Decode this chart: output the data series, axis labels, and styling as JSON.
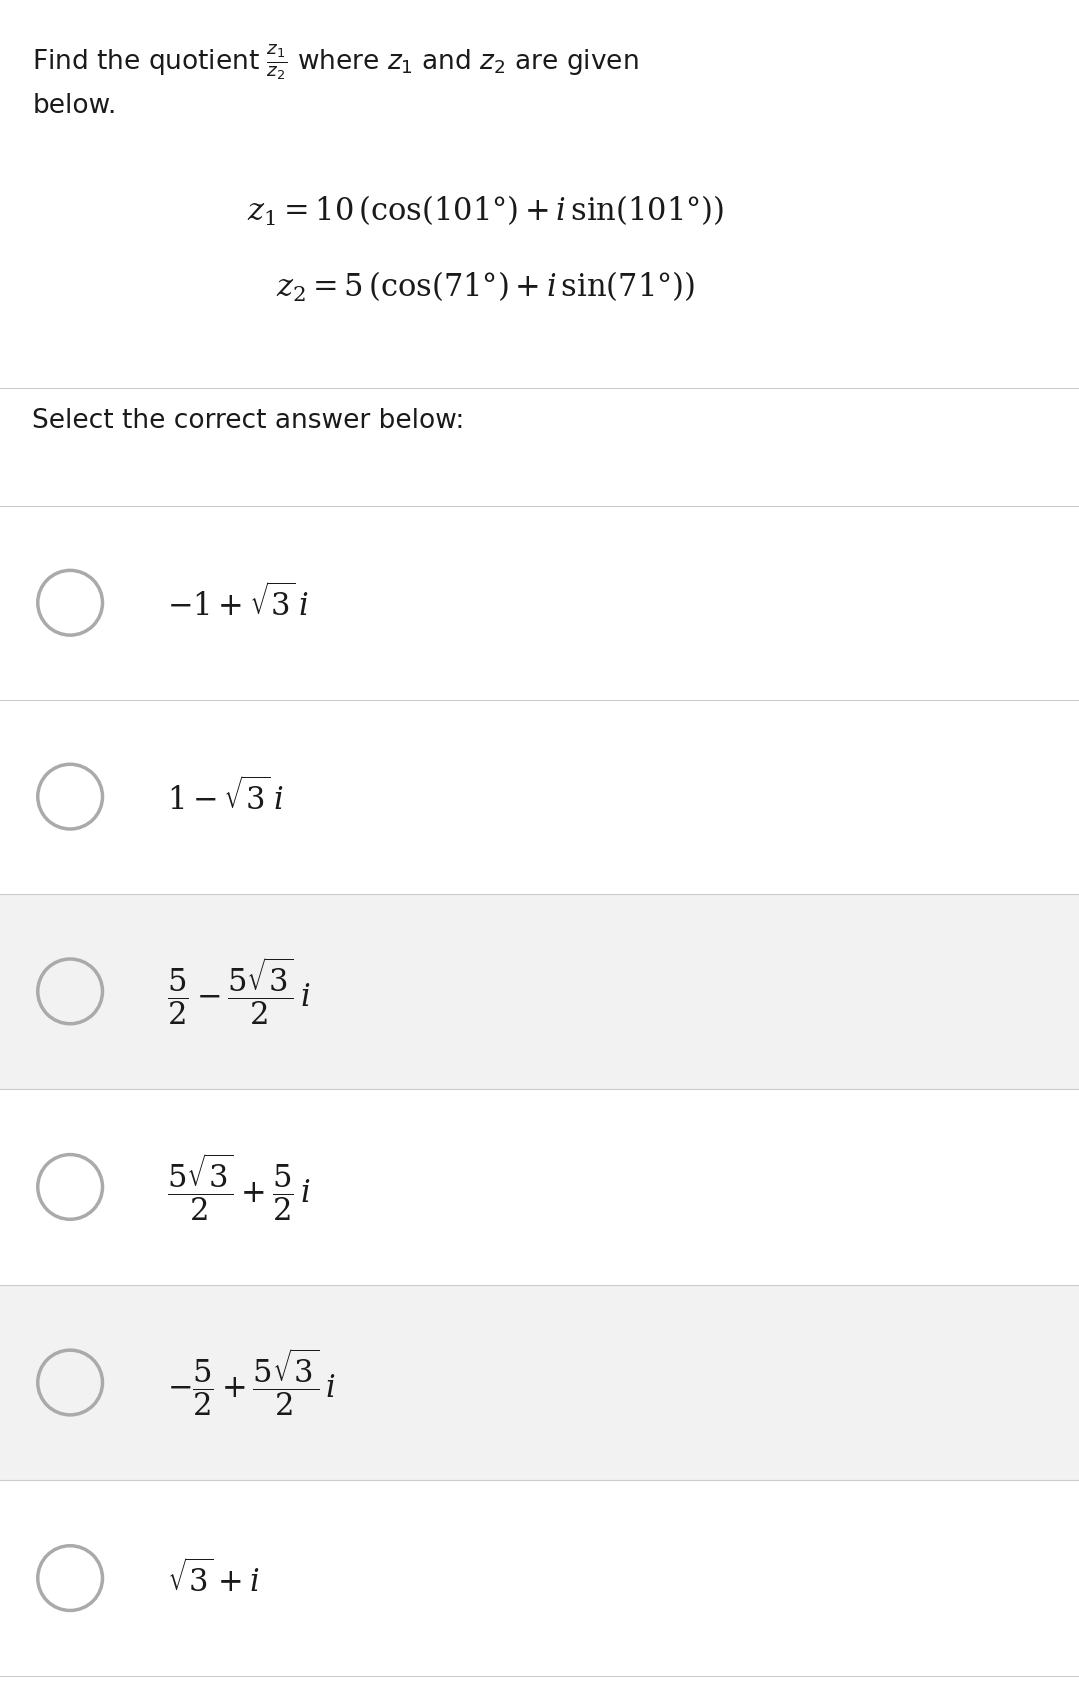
{
  "bg_color": "#ffffff",
  "row_alt_color": "#f2f2f2",
  "text_color": "#1a1a1a",
  "divider_color": "#cccccc",
  "circle_color": "#aaaaaa",
  "font_size_title": 19,
  "font_size_eq": 22,
  "font_size_select": 19,
  "font_size_option": 22,
  "options_bg": [
    false,
    false,
    true,
    false,
    true,
    false
  ]
}
